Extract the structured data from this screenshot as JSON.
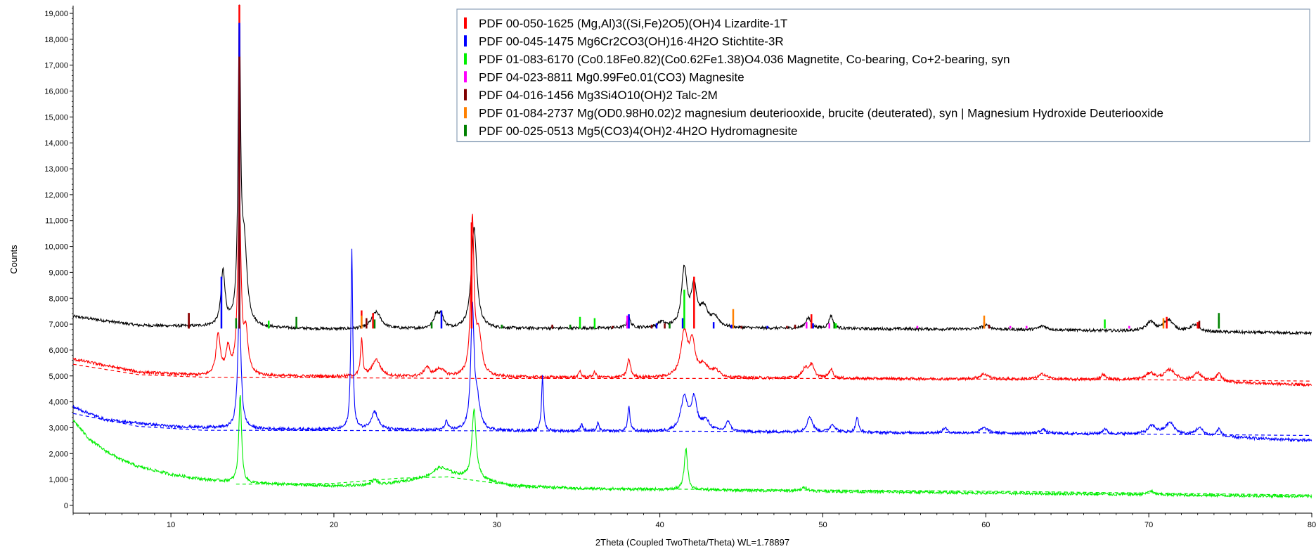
{
  "chart_data": {
    "type": "line",
    "title": "",
    "xlabel": "2Theta (Coupled TwoTheta/Theta) WL=1.78897",
    "ylabel": "Counts",
    "xlim": [
      4,
      80
    ],
    "ylim": [
      -300,
      19300
    ],
    "x_ticks": [
      10,
      20,
      30,
      40,
      50,
      60,
      70,
      80
    ],
    "y_ticks": [
      0,
      1000,
      2000,
      3000,
      4000,
      5000,
      6000,
      7000,
      8000,
      9000,
      10000,
      11000,
      12000,
      13000,
      14000,
      15000,
      16000,
      17000,
      18000,
      19000
    ],
    "y_tick_labels": [
      "0",
      "1,000",
      "2,000",
      "3,000",
      "4,000",
      "5,000",
      "6,000",
      "7,000",
      "8,000",
      "9,000",
      "10,000",
      "11,000",
      "12,000",
      "13,000",
      "14,000",
      "15,000",
      "16,000",
      "17,000",
      "18,000",
      "19,000"
    ],
    "legend_position": "top-right",
    "legend": [
      {
        "label": "PDF 00-050-1625 (Mg,Al)3((Si,Fe)2O5)(OH)4 Lizardite-1T",
        "color": "#ff0000"
      },
      {
        "label": "PDF 00-045-1475 Mg6Cr2CO3(OH)16·4H2O Stichtite-3R",
        "color": "#0000ff"
      },
      {
        "label": "PDF 01-083-6170 (Co0.18Fe0.82)(Co0.62Fe1.38)O4.036 Magnetite, Co-bearing, Co+2-bearing, syn",
        "color": "#00ee00"
      },
      {
        "label": "PDF 04-023-8811 Mg0.99Fe0.01(CO3) Magnesite",
        "color": "#ff00ff"
      },
      {
        "label": "PDF 04-016-1456 Mg3Si4O10(OH)2 Talc-2M",
        "color": "#800000"
      },
      {
        "label": "PDF 01-084-2737 Mg(OD0.98H0.02)2 magnesium deuteriooxide, brucite (deuterated), syn | Magnesium Hydroxide Deuteriooxide",
        "color": "#ff8000"
      },
      {
        "label": "PDF 00-025-0513 Mg5(CO3)4(OH)2·4H2O Hydromagnesite",
        "color": "#008000"
      }
    ],
    "series": [
      {
        "color": "#000000",
        "baseline": [
          [
            4,
            7300
          ],
          [
            8,
            6950
          ],
          [
            20,
            6800
          ],
          [
            40,
            6850
          ],
          [
            60,
            6800
          ],
          [
            80,
            6650
          ]
        ],
        "peaks": [
          [
            13.2,
            2100,
            0.15
          ],
          [
            14.2,
            11500,
            0.09
          ],
          [
            14.5,
            3000,
            0.2
          ],
          [
            22.6,
            650,
            0.35
          ],
          [
            26.3,
            550,
            0.2
          ],
          [
            26.6,
            450,
            0.15
          ],
          [
            28.6,
            3900,
            0.2
          ],
          [
            38.1,
            350,
            0.15
          ],
          [
            40.1,
            200,
            0.25
          ],
          [
            41.5,
            2250,
            0.2
          ],
          [
            42.1,
            1500,
            0.2
          ],
          [
            42.7,
            700,
            0.3
          ],
          [
            43.4,
            350,
            0.3
          ],
          [
            49.1,
            400,
            0.2
          ],
          [
            50.5,
            500,
            0.15
          ],
          [
            60.0,
            150,
            0.3
          ],
          [
            63.5,
            150,
            0.3
          ],
          [
            70.1,
            350,
            0.3
          ],
          [
            71.2,
            450,
            0.35
          ],
          [
            72.8,
            250,
            0.3
          ]
        ]
      },
      {
        "color": "#ff0000",
        "baseline": [
          [
            4,
            5650
          ],
          [
            8,
            5150
          ],
          [
            12,
            5000
          ],
          [
            30,
            4950
          ],
          [
            50,
            4900
          ],
          [
            70,
            4850
          ],
          [
            80,
            4650
          ]
        ],
        "peaks": [
          [
            12.9,
            1600,
            0.15
          ],
          [
            13.5,
            1000,
            0.15
          ],
          [
            14.2,
            6800,
            0.12
          ],
          [
            14.6,
            1500,
            0.15
          ],
          [
            21.7,
            1400,
            0.08
          ],
          [
            22.6,
            650,
            0.3
          ],
          [
            25.7,
            350,
            0.2
          ],
          [
            26.5,
            300,
            0.3
          ],
          [
            28.5,
            6000,
            0.12
          ],
          [
            28.9,
            1500,
            0.2
          ],
          [
            35.1,
            250,
            0.08
          ],
          [
            36.0,
            200,
            0.1
          ],
          [
            38.1,
            700,
            0.12
          ],
          [
            41.5,
            1700,
            0.25
          ],
          [
            42.0,
            1250,
            0.2
          ],
          [
            42.7,
            450,
            0.3
          ],
          [
            43.4,
            250,
            0.3
          ],
          [
            48.9,
            350,
            0.2
          ],
          [
            49.3,
            500,
            0.2
          ],
          [
            50.5,
            350,
            0.15
          ],
          [
            59.9,
            200,
            0.3
          ],
          [
            63.5,
            200,
            0.3
          ],
          [
            67.2,
            200,
            0.15
          ],
          [
            70.1,
            250,
            0.3
          ],
          [
            71.3,
            400,
            0.4
          ],
          [
            73.0,
            300,
            0.3
          ],
          [
            74.3,
            300,
            0.2
          ]
        ]
      },
      {
        "color": "#0000ff",
        "baseline": [
          [
            4,
            3800
          ],
          [
            6,
            3300
          ],
          [
            10,
            3050
          ],
          [
            15,
            2950
          ],
          [
            30,
            2880
          ],
          [
            50,
            2820
          ],
          [
            70,
            2750
          ],
          [
            80,
            2500
          ]
        ],
        "peaks": [
          [
            14.2,
            4700,
            0.12
          ],
          [
            21.1,
            7000,
            0.07
          ],
          [
            22.5,
            700,
            0.25
          ],
          [
            26.9,
            350,
            0.1
          ],
          [
            28.5,
            4700,
            0.12
          ],
          [
            28.8,
            1000,
            0.2
          ],
          [
            32.8,
            2100,
            0.07
          ],
          [
            35.2,
            300,
            0.08
          ],
          [
            36.2,
            300,
            0.08
          ],
          [
            38.1,
            950,
            0.08
          ],
          [
            41.5,
            1300,
            0.25
          ],
          [
            42.1,
            1200,
            0.2
          ],
          [
            42.8,
            400,
            0.3
          ],
          [
            44.2,
            400,
            0.15
          ],
          [
            49.2,
            600,
            0.2
          ],
          [
            50.6,
            300,
            0.2
          ],
          [
            52.1,
            600,
            0.1
          ],
          [
            57.5,
            200,
            0.15
          ],
          [
            59.9,
            200,
            0.3
          ],
          [
            63.5,
            150,
            0.25
          ],
          [
            67.3,
            200,
            0.15
          ],
          [
            70.2,
            300,
            0.3
          ],
          [
            71.3,
            450,
            0.35
          ],
          [
            73.1,
            300,
            0.3
          ],
          [
            74.3,
            300,
            0.15
          ]
        ]
      },
      {
        "color": "#00ee00",
        "baseline": [
          [
            4,
            3300
          ],
          [
            5,
            2550
          ],
          [
            6,
            2100
          ],
          [
            7,
            1750
          ],
          [
            8,
            1500
          ],
          [
            9,
            1350
          ],
          [
            10,
            1200
          ],
          [
            12,
            1000
          ],
          [
            15,
            850
          ],
          [
            20,
            750
          ],
          [
            23,
            800
          ],
          [
            25,
            1000
          ],
          [
            27,
            1200
          ],
          [
            29,
            1000
          ],
          [
            31,
            750
          ],
          [
            35,
            650
          ],
          [
            45,
            580
          ],
          [
            60,
            480
          ],
          [
            80,
            350
          ]
        ],
        "peaks": [
          [
            14.25,
            3400,
            0.1
          ],
          [
            22.5,
            200,
            0.2
          ],
          [
            26.5,
            300,
            0.5
          ],
          [
            28.6,
            2700,
            0.15
          ],
          [
            41.6,
            1600,
            0.12
          ],
          [
            48.9,
            150,
            0.2
          ],
          [
            70.1,
            150,
            0.2
          ]
        ]
      }
    ],
    "background_curves": [
      {
        "color": "#ff0000",
        "points": [
          [
            4,
            5450
          ],
          [
            8,
            5050
          ],
          [
            12,
            4950
          ],
          [
            30,
            4900
          ],
          [
            50,
            4900
          ],
          [
            70,
            4850
          ],
          [
            80,
            4800
          ]
        ]
      },
      {
        "color": "#0000ff",
        "points": [
          [
            4,
            3550
          ],
          [
            8,
            3050
          ],
          [
            12,
            2900
          ],
          [
            30,
            2880
          ],
          [
            50,
            2850
          ],
          [
            70,
            2750
          ],
          [
            80,
            2700
          ]
        ]
      },
      {
        "color": "#00ee00",
        "points": [
          [
            14,
            820
          ],
          [
            20,
            850
          ],
          [
            24,
            1050
          ],
          [
            27,
            1100
          ],
          [
            30,
            850
          ],
          [
            35,
            650
          ],
          [
            60,
            550
          ],
          [
            80,
            400
          ]
        ]
      }
    ],
    "reference_lines": [
      {
        "color": "#ff0000",
        "base": 6830,
        "lines": [
          [
            11.1,
            600
          ],
          [
            14.2,
            12500
          ],
          [
            21.7,
            700
          ],
          [
            22.4,
            600
          ],
          [
            28.45,
            4100
          ],
          [
            42.1,
            2000
          ],
          [
            49.3,
            550
          ],
          [
            59.9,
            250
          ],
          [
            71.1,
            450
          ],
          [
            73.0,
            250
          ]
        ]
      },
      {
        "color": "#0000ff",
        "base": 6830,
        "lines": [
          [
            13.1,
            2000
          ],
          [
            14.2,
            11800
          ],
          [
            26.6,
            700
          ],
          [
            38.1,
            550
          ],
          [
            39.8,
            200
          ],
          [
            41.4,
            400
          ],
          [
            43.3,
            250
          ],
          [
            44.4,
            150
          ],
          [
            46.6,
            100
          ],
          [
            49.4,
            200
          ]
        ]
      },
      {
        "color": "#00ee00",
        "base": 6830,
        "lines": [
          [
            16.0,
            300
          ],
          [
            35.1,
            450
          ],
          [
            36.0,
            400
          ],
          [
            41.5,
            1500
          ],
          [
            50.8,
            200
          ],
          [
            67.3,
            350
          ],
          [
            74.3,
            450
          ]
        ]
      },
      {
        "color": "#ff00ff",
        "base": 6830,
        "lines": [
          [
            38.0,
            500
          ],
          [
            49.0,
            250
          ],
          [
            50.4,
            200
          ],
          [
            55.8,
            100
          ],
          [
            61.5,
            100
          ],
          [
            62.5,
            100
          ],
          [
            68.8,
            100
          ]
        ]
      },
      {
        "color": "#800000",
        "base": 6830,
        "lines": [
          [
            11.1,
            600
          ],
          [
            14.2,
            10500
          ],
          [
            22.0,
            400
          ],
          [
            33.4,
            150
          ],
          [
            37.1,
            100
          ],
          [
            39.5,
            150
          ],
          [
            40.3,
            200
          ],
          [
            45.0,
            100
          ],
          [
            47.8,
            100
          ],
          [
            48.3,
            150
          ],
          [
            60.2,
            150
          ],
          [
            73.1,
            300
          ]
        ]
      },
      {
        "color": "#ff8000",
        "base": 6830,
        "lines": [
          [
            21.7,
            500
          ],
          [
            44.5,
            750
          ],
          [
            59.9,
            500
          ],
          [
            70.9,
            400
          ]
        ]
      },
      {
        "color": "#008000",
        "base": 6830,
        "lines": [
          [
            17.7,
            450
          ],
          [
            14.0,
            400
          ],
          [
            22.5,
            350
          ],
          [
            26.0,
            250
          ],
          [
            30.3,
            150
          ],
          [
            34.5,
            150
          ],
          [
            40.6,
            200
          ],
          [
            50.7,
            250
          ],
          [
            74.3,
            600
          ]
        ]
      }
    ]
  }
}
